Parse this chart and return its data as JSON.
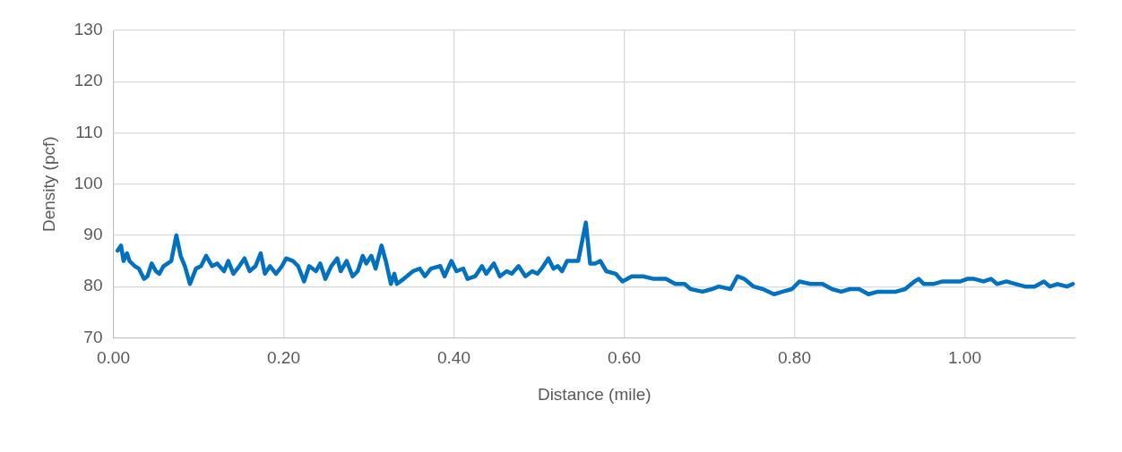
{
  "chart_data": {
    "type": "line",
    "xlabel": "Distance (mile)",
    "ylabel": "Density (pcf)",
    "xlim": [
      0,
      1.13
    ],
    "xticks": [
      {
        "value": 0,
        "label": "0.00"
      },
      {
        "value": 0.2,
        "label": "0.20"
      },
      {
        "value": 0.4,
        "label": "0.40"
      },
      {
        "value": 0.6,
        "label": "0.60"
      },
      {
        "value": 0.8,
        "label": "0.80"
      },
      {
        "value": 1,
        "label": "1.00"
      }
    ],
    "ylim": [
      70,
      130
    ],
    "yticks": [
      70,
      80,
      90,
      100,
      110,
      120,
      130
    ],
    "grid": true,
    "legend": false,
    "marker": "none",
    "line_style": "solid",
    "series": [
      {
        "color": "#0070c0",
        "x": [
          0.005,
          0.009,
          0.012,
          0.016,
          0.019,
          0.025,
          0.03,
          0.036,
          0.04,
          0.045,
          0.05,
          0.054,
          0.059,
          0.068,
          0.074,
          0.079,
          0.084,
          0.09,
          0.097,
          0.103,
          0.109,
          0.116,
          0.122,
          0.13,
          0.135,
          0.141,
          0.148,
          0.154,
          0.16,
          0.167,
          0.173,
          0.178,
          0.184,
          0.191,
          0.198,
          0.203,
          0.211,
          0.217,
          0.224,
          0.23,
          0.238,
          0.243,
          0.249,
          0.256,
          0.263,
          0.267,
          0.274,
          0.281,
          0.287,
          0.293,
          0.297,
          0.303,
          0.308,
          0.315,
          0.32,
          0.326,
          0.33,
          0.333,
          0.341,
          0.352,
          0.36,
          0.366,
          0.373,
          0.384,
          0.389,
          0.397,
          0.403,
          0.411,
          0.416,
          0.425,
          0.433,
          0.438,
          0.447,
          0.454,
          0.462,
          0.468,
          0.476,
          0.484,
          0.492,
          0.498,
          0.503,
          0.511,
          0.517,
          0.522,
          0.527,
          0.533,
          0.541,
          0.546,
          0.555,
          0.56,
          0.566,
          0.572,
          0.579,
          0.59,
          0.598,
          0.609,
          0.622,
          0.635,
          0.649,
          0.66,
          0.671,
          0.678,
          0.692,
          0.703,
          0.711,
          0.725,
          0.733,
          0.741,
          0.752,
          0.763,
          0.776,
          0.786,
          0.797,
          0.806,
          0.819,
          0.833,
          0.844,
          0.855,
          0.865,
          0.876,
          0.887,
          0.898,
          0.909,
          0.919,
          0.93,
          0.941,
          0.946,
          0.952,
          0.963,
          0.974,
          0.984,
          0.995,
          1.003,
          1.011,
          1.022,
          1.031,
          1.038,
          1.049,
          1.06,
          1.071,
          1.082,
          1.093,
          1.1,
          1.109,
          1.12,
          1.127
        ],
        "values": [
          87,
          88,
          85,
          86.5,
          85,
          84,
          83.5,
          81.5,
          82,
          84.5,
          83,
          82.5,
          84,
          85,
          90,
          86,
          84,
          80.5,
          83.5,
          84,
          86,
          84,
          84.5,
          83,
          85,
          82.5,
          84,
          85.5,
          83,
          84,
          86.5,
          82.5,
          84,
          82.5,
          84,
          85.5,
          85,
          84,
          81,
          84,
          83,
          84.5,
          81.5,
          84,
          85.5,
          83,
          85,
          82,
          83,
          86,
          84.5,
          86,
          83.5,
          88,
          85,
          80.5,
          82.5,
          80.5,
          81.5,
          83,
          83.5,
          82,
          83.5,
          84,
          82,
          85,
          83,
          83.5,
          81.5,
          82,
          84,
          82.5,
          84.5,
          82,
          83,
          82.5,
          84,
          82,
          83,
          82.5,
          83.5,
          85.5,
          83.5,
          84,
          83,
          85,
          85,
          85,
          92.5,
          84.5,
          84.5,
          85,
          83,
          82.5,
          81,
          82,
          82,
          81.5,
          81.5,
          80.5,
          80.5,
          79.5,
          79,
          79.5,
          80,
          79.5,
          82,
          81.5,
          80,
          79.5,
          78.5,
          79,
          79.5,
          81,
          80.5,
          80.5,
          79.5,
          79,
          79.5,
          79.5,
          78.5,
          79,
          79,
          79,
          79.5,
          81,
          81.5,
          80.5,
          80.5,
          81,
          81,
          81,
          81.5,
          81.5,
          81,
          81.5,
          80.5,
          81,
          80.5,
          80,
          80,
          81,
          80,
          80.5,
          80,
          80.5
        ]
      }
    ]
  }
}
